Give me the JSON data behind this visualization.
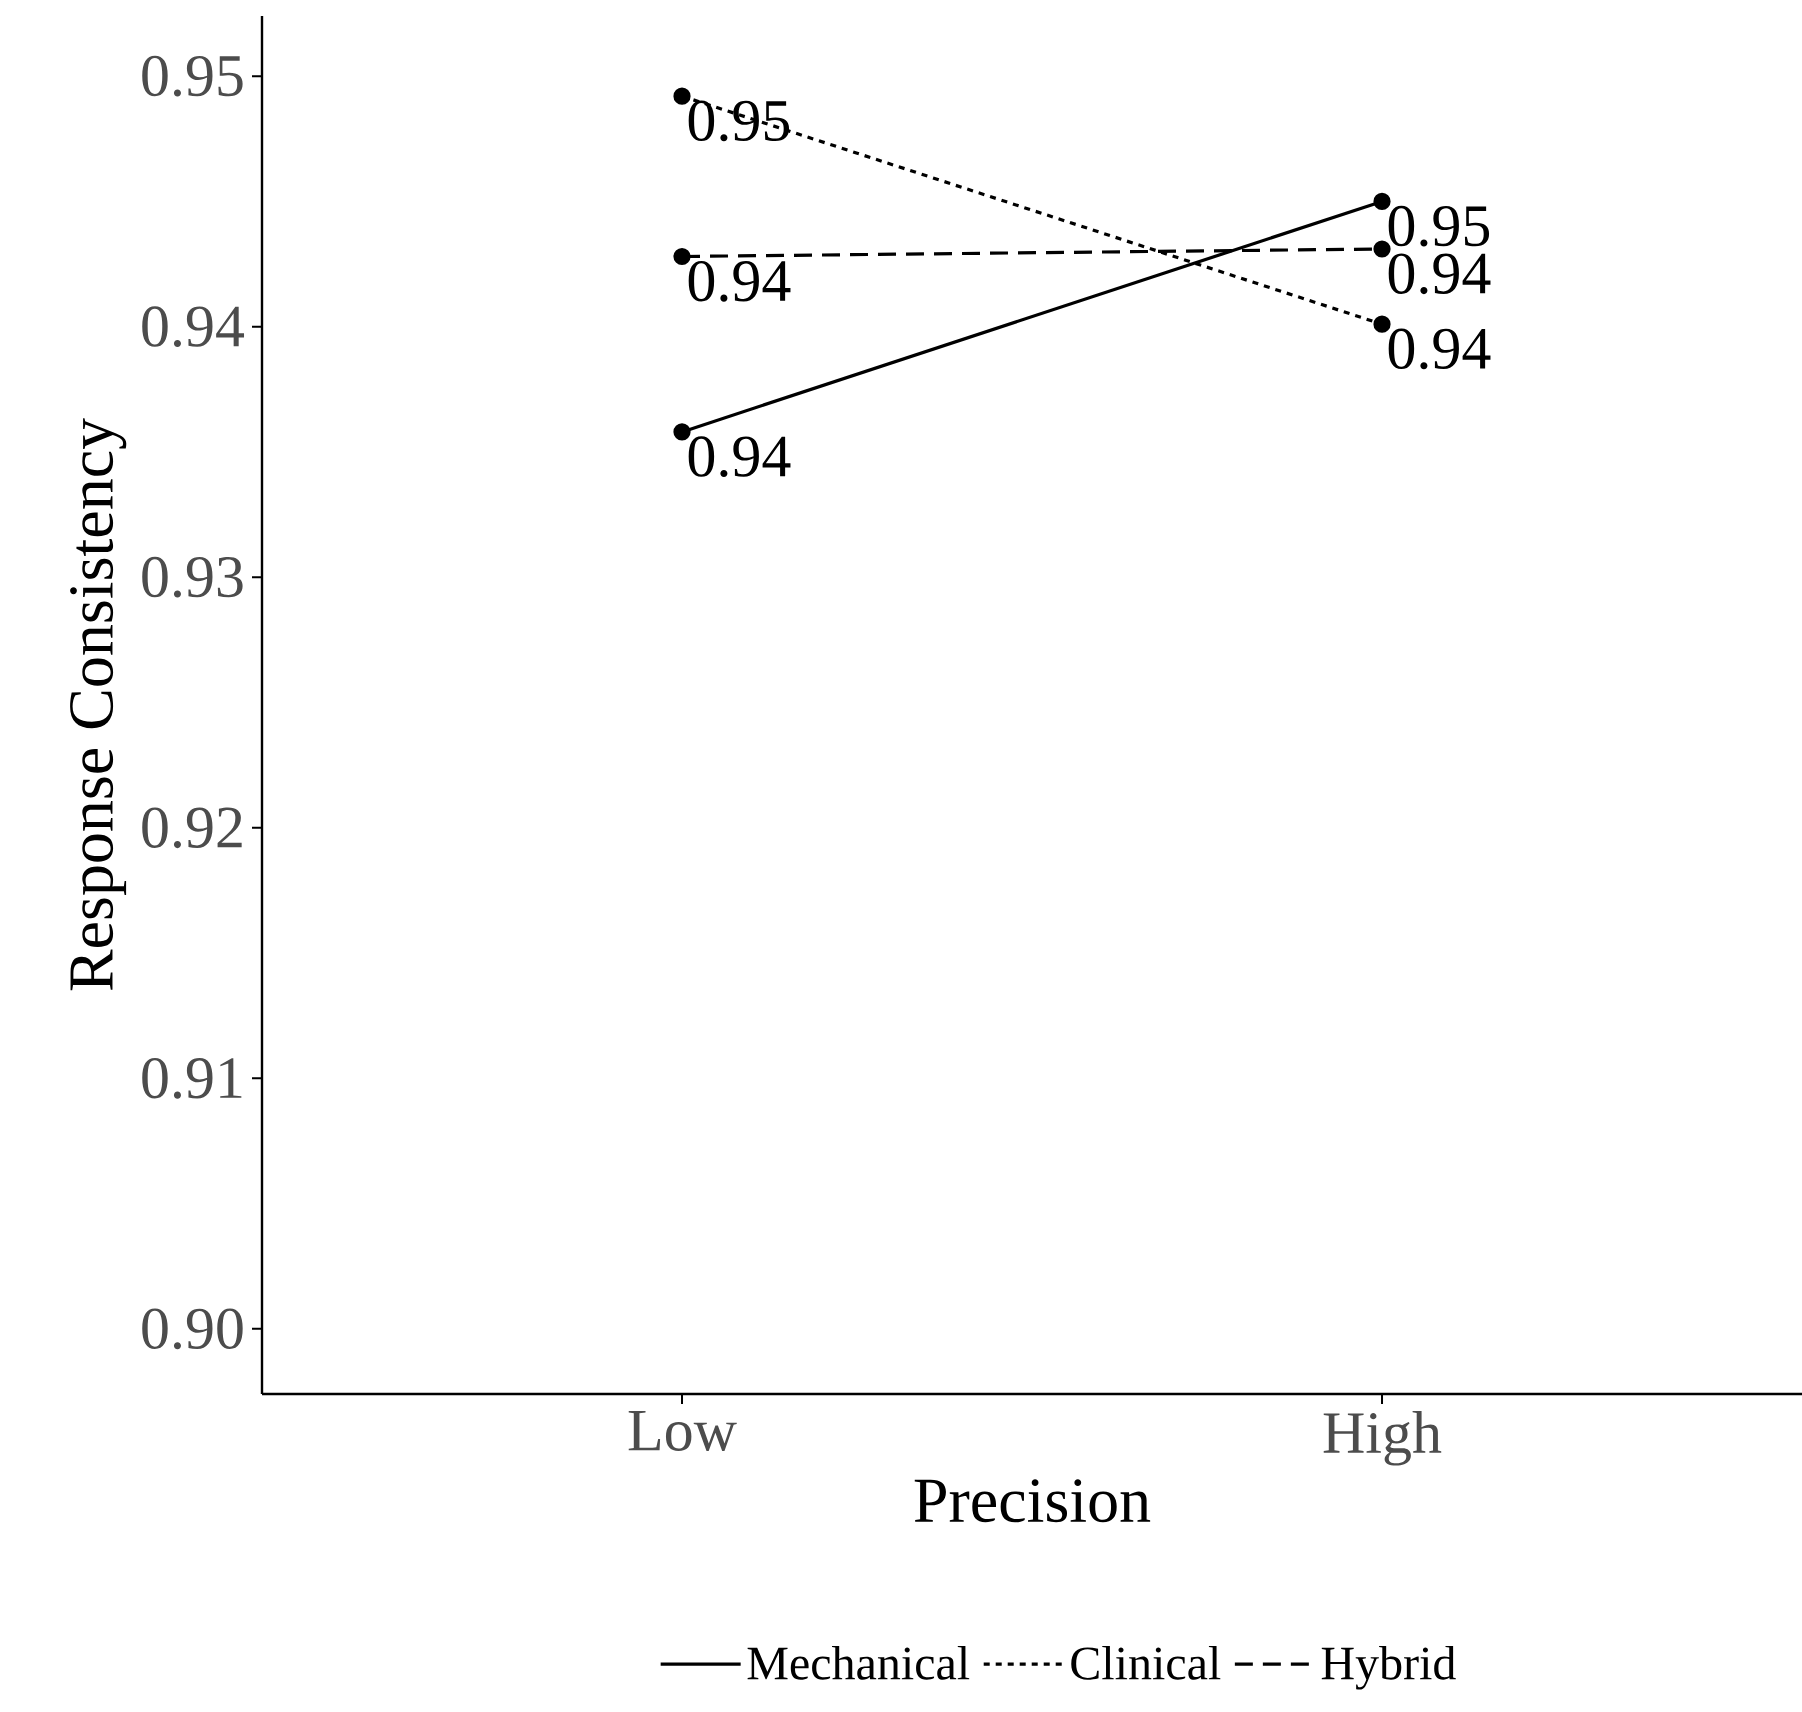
{
  "chart_data": {
    "type": "line",
    "xlabel": "Precision",
    "ylabel": "Response Consistency",
    "categories": [
      "Low",
      "High"
    ],
    "series": [
      {
        "name": "Mechanical",
        "color": "#000000",
        "line_style": "solid",
        "values": [
          0.9358,
          0.945
        ],
        "value_labels": [
          "0.94",
          "0.95"
        ]
      },
      {
        "name": "Clinical",
        "color": "#000000",
        "line_style": "dotted",
        "values": [
          0.9492,
          0.9401
        ],
        "value_labels": [
          "0.95",
          "0.94"
        ]
      },
      {
        "name": "Hybrid",
        "color": "#000000",
        "line_style": "dashed",
        "values": [
          0.9428,
          0.9431
        ],
        "value_labels": [
          "0.94",
          "0.94"
        ]
      }
    ],
    "ylim": [
      0.8974,
      0.9524
    ],
    "yticks": [
      {
        "value": 0.9,
        "label": "0.90"
      },
      0.91,
      0.92,
      0.93,
      0.94,
      0.95
    ],
    "grid": false,
    "legend": "bottom",
    "marker": "circle"
  }
}
